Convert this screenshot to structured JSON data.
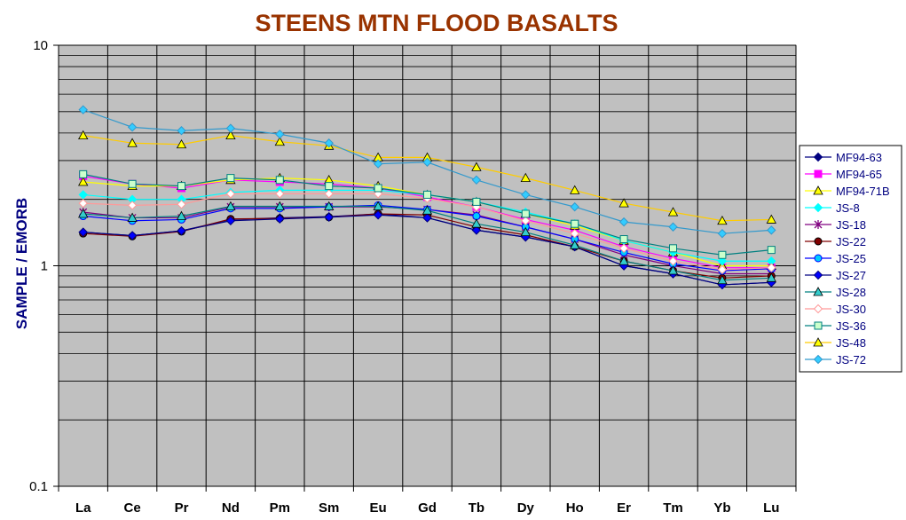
{
  "chart_data": {
    "type": "line",
    "title": "STEENS MTN FLOOD BASALTS",
    "ylabel": "SAMPLE / EMORB",
    "xlabel": "",
    "yscale": "log",
    "ylim": [
      0.1,
      10
    ],
    "y_ticks": [
      "0.1",
      "1",
      "10"
    ],
    "grid": true,
    "legend": "right",
    "plot_background": "#c0c0c0",
    "categories": [
      "La",
      "Ce",
      "Pr",
      "Nd",
      "Pm",
      "Sm",
      "Eu",
      "Gd",
      "Tb",
      "Dy",
      "Ho",
      "Er",
      "Tm",
      "Yb",
      "Lu"
    ],
    "series": [
      {
        "name": "MF94-63",
        "color": "#000080",
        "marker": "diamond",
        "fill": "#000080",
        "values": [
          1.42,
          1.37,
          1.44,
          1.62,
          1.65,
          1.67,
          1.72,
          1.65,
          1.45,
          1.35,
          1.22,
          1.0,
          0.92,
          0.82,
          0.84
        ]
      },
      {
        "name": "MF94-65",
        "color": "#ff00ff",
        "marker": "square",
        "fill": "#ff00ff",
        "values": [
          2.55,
          2.35,
          2.25,
          2.45,
          2.4,
          2.35,
          2.25,
          2.05,
          1.85,
          1.62,
          1.45,
          1.22,
          1.08,
          0.98,
          0.98
        ]
      },
      {
        "name": "MF94-71B",
        "color": "#ffff00",
        "marker": "triangle",
        "fill": "#ffff00",
        "values": [
          2.4,
          2.3,
          2.3,
          2.45,
          2.5,
          2.45,
          2.3,
          2.1,
          1.95,
          1.72,
          1.52,
          1.3,
          1.15,
          1.0,
          1.0
        ]
      },
      {
        "name": "JS-8",
        "color": "#00ffff",
        "marker": "diamond",
        "fill": "#00ffff",
        "values": [
          2.1,
          2.0,
          2.0,
          2.15,
          2.2,
          2.2,
          2.2,
          2.1,
          1.95,
          1.75,
          1.55,
          1.3,
          1.15,
          1.05,
          1.05
        ]
      },
      {
        "name": "JS-18",
        "color": "#800080",
        "marker": "star",
        "fill": "#800080",
        "values": [
          1.75,
          1.65,
          1.65,
          1.85,
          1.85,
          1.85,
          1.85,
          1.8,
          1.7,
          1.5,
          1.32,
          1.12,
          1.0,
          0.92,
          0.92
        ]
      },
      {
        "name": "JS-22",
        "color": "#800000",
        "marker": "circle",
        "fill": "#800000",
        "values": [
          1.4,
          1.36,
          1.43,
          1.63,
          1.64,
          1.66,
          1.72,
          1.7,
          1.5,
          1.38,
          1.22,
          1.05,
          0.95,
          0.88,
          0.9
        ]
      },
      {
        "name": "JS-25",
        "color": "#0000ff",
        "marker": "circle",
        "fill": "#00ccff",
        "values": [
          1.68,
          1.6,
          1.62,
          1.82,
          1.82,
          1.85,
          1.88,
          1.8,
          1.68,
          1.5,
          1.32,
          1.15,
          1.02,
          0.95,
          0.97
        ]
      },
      {
        "name": "JS-27",
        "color": "#000080",
        "marker": "diamond",
        "fill": "#0000ff",
        "values": [
          1.42,
          1.37,
          1.44,
          1.6,
          1.63,
          1.66,
          1.7,
          1.65,
          1.45,
          1.35,
          1.22,
          1.0,
          0.92,
          0.82,
          0.84
        ]
      },
      {
        "name": "JS-28",
        "color": "#008080",
        "marker": "triangle",
        "fill": "#33cccc",
        "values": [
          1.72,
          1.65,
          1.68,
          1.86,
          1.86,
          1.86,
          1.86,
          1.78,
          1.55,
          1.42,
          1.24,
          1.05,
          0.95,
          0.86,
          0.88
        ]
      },
      {
        "name": "JS-30",
        "color": "#ff9999",
        "marker": "diamond-open",
        "fill": "#ffffff",
        "values": [
          1.92,
          1.88,
          1.9,
          2.12,
          2.12,
          2.12,
          2.12,
          2.02,
          1.85,
          1.6,
          1.4,
          1.2,
          1.05,
          0.96,
          0.98
        ]
      },
      {
        "name": "JS-36",
        "color": "#008080",
        "marker": "square-open",
        "fill": "#ccffcc",
        "values": [
          2.6,
          2.35,
          2.3,
          2.5,
          2.45,
          2.3,
          2.25,
          2.1,
          1.95,
          1.72,
          1.55,
          1.32,
          1.2,
          1.12,
          1.18
        ]
      },
      {
        "name": "JS-48",
        "color": "#ffcc00",
        "marker": "triangle",
        "fill": "#ffff00",
        "values": [
          3.9,
          3.6,
          3.55,
          3.9,
          3.65,
          3.5,
          3.1,
          3.1,
          2.8,
          2.5,
          2.2,
          1.92,
          1.75,
          1.6,
          1.62
        ]
      },
      {
        "name": "JS-72",
        "color": "#3399cc",
        "marker": "diamond",
        "fill": "#33ccff",
        "values": [
          5.1,
          4.25,
          4.1,
          4.2,
          3.95,
          3.6,
          2.9,
          2.95,
          2.45,
          2.1,
          1.85,
          1.58,
          1.5,
          1.4,
          1.45
        ]
      }
    ]
  }
}
